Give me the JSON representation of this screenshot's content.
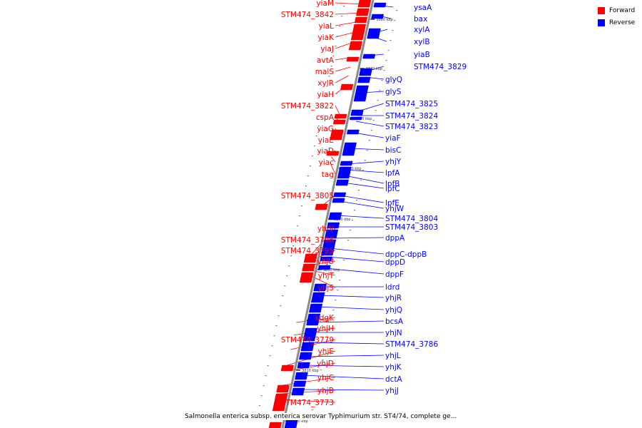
{
  "caption": "Salmonella enterica subsp. enterica serovar Typhimurium str. ST4/74, complete ge...",
  "legend": {
    "forward": {
      "label": "Forward",
      "color": "#ff0000"
    },
    "reverse": {
      "label": "Reverse",
      "color": "#0000ff"
    }
  },
  "ticks": [
    "3880 kbp",
    "3870 kbp",
    "3860 kbp",
    "3850 kbp",
    "3840 kbp",
    "3830 kbp",
    "3820 kbp",
    "3810 kbp",
    "3800 kbp"
  ],
  "genes": {
    "forward": [
      "yiaM",
      "STM474_3842",
      "yiaL",
      "yiaK",
      "yiaJ",
      "avtA",
      "malS",
      "xylR",
      "yiaH",
      "STM474_3822",
      "cspA",
      "yiaG",
      "yiaE",
      "yiaD",
      "yiac",
      "tag",
      "STM474_3805",
      "yhjV",
      "STM474_3796",
      "STM474_3795",
      "yhjU",
      "yhjT",
      "yhjS",
      "kdgK",
      "yhjH",
      "STM474_3779",
      "yhjE",
      "yhjD",
      "yhjC",
      "yhjB",
      "STM474_3773"
    ],
    "reverse": [
      "ysaA",
      "bax",
      "xylA",
      "xylB",
      "yiaB",
      "STM474_3829",
      "glyQ",
      "glyS",
      "STM474_3825",
      "STM474_3824",
      "STM474_3823",
      "yiaF",
      "bisC",
      "yhjY",
      "lpfA",
      "lpfB",
      "lpfC",
      "lpfE",
      "yhjW",
      "STM474_3804",
      "STM474_3803",
      "dppA",
      "dppC-dppB",
      "dppD",
      "dppF",
      "ldrd",
      "yhjR",
      "yhjQ",
      "bcsA",
      "yhjN",
      "STM474_3786",
      "yhjL",
      "yhjK",
      "dctA",
      "yhjJ"
    ]
  }
}
